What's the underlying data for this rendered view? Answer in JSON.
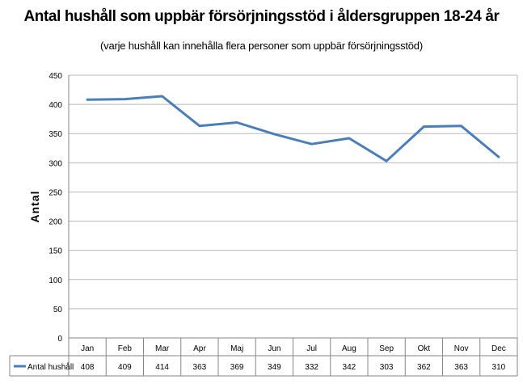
{
  "chart_data": {
    "type": "line",
    "title": "Antal hushåll som uppbär försörjningsstöd i åldersgruppen 18-24 år",
    "subtitle": "(varje hushåll kan innehålla flera personer som uppbär försörjningsstöd)",
    "xlabel": "",
    "ylabel": "Antal",
    "ylim": [
      0,
      450
    ],
    "yticks": [
      0,
      50,
      100,
      150,
      200,
      250,
      300,
      350,
      400,
      450
    ],
    "grid": true,
    "legend": "data-table-left",
    "categories": [
      "Jan",
      "Feb",
      "Mar",
      "Apr",
      "Maj",
      "Jun",
      "Jul",
      "Aug",
      "Sep",
      "Okt",
      "Nov",
      "Dec"
    ],
    "series": [
      {
        "name": "Antal hushåll",
        "color": "#4a7ebb",
        "values": [
          408,
          409,
          414,
          363,
          369,
          349,
          332,
          342,
          303,
          362,
          363,
          310
        ]
      }
    ]
  }
}
